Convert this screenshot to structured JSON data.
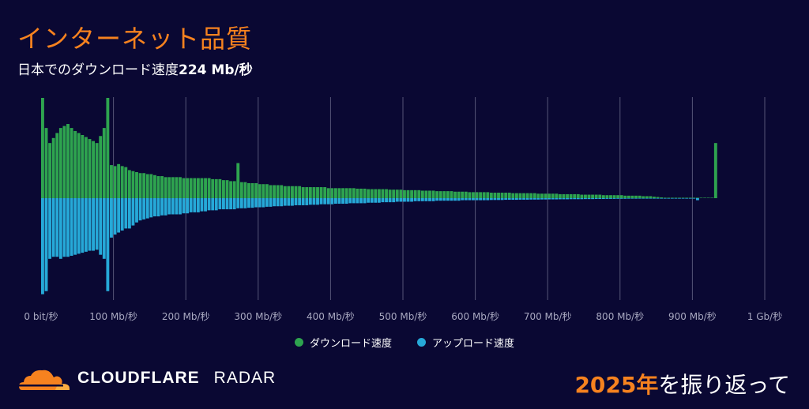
{
  "header": {
    "title": "インターネット品質",
    "subtitle_prefix": "日本でのダウンロード速度",
    "subtitle_value": "224 Mb/秒"
  },
  "footer": {
    "brand": "CLOUDFLARE",
    "product": "RADAR",
    "year": "2025年",
    "tagline": "を振り返って"
  },
  "colors": {
    "background": "#0a0833",
    "download": "#2ea44f",
    "upload": "#26a9d8",
    "accent": "#f6821f",
    "grid": "#555577"
  },
  "chart_data": {
    "type": "bar",
    "title": "インターネット品質",
    "subtitle": "日本でのダウンロード速度224 Mb/秒",
    "x_unit": "Mb/s",
    "xlim": [
      0,
      1000
    ],
    "bin_width_mbps": 5,
    "ticks": [
      {
        "value": 0,
        "label": "0 bit/秒"
      },
      {
        "value": 100,
        "label": "100 Mb/秒"
      },
      {
        "value": 200,
        "label": "200 Mb/秒"
      },
      {
        "value": 300,
        "label": "300 Mb/秒"
      },
      {
        "value": 400,
        "label": "400 Mb/秒"
      },
      {
        "value": 500,
        "label": "500 Mb/秒"
      },
      {
        "value": 600,
        "label": "600 Mb/秒"
      },
      {
        "value": 700,
        "label": "700 Mb/秒"
      },
      {
        "value": 800,
        "label": "800 Mb/秒"
      },
      {
        "value": 900,
        "label": "900 Mb/秒"
      },
      {
        "value": 1000,
        "label": "1 Gb/秒"
      }
    ],
    "legend": [
      "ダウンロード速度",
      "アップロード速度"
    ],
    "series": [
      {
        "name": "ダウンロード速度",
        "direction": "up",
        "values": [
          100,
          70,
          55,
          60,
          65,
          70,
          72,
          74,
          70,
          67,
          65,
          63,
          61,
          59,
          57,
          55,
          62,
          70,
          100,
          33,
          32,
          34,
          32,
          31,
          28,
          27,
          26,
          25,
          25,
          24,
          24,
          23,
          22,
          22,
          21,
          21,
          21,
          21,
          21,
          20,
          20,
          20,
          20,
          20,
          20,
          20,
          20,
          19,
          19,
          19,
          18,
          18,
          17,
          17,
          35,
          16,
          16,
          15,
          15,
          15,
          14,
          14,
          14,
          13,
          13,
          13,
          13,
          12,
          12,
          12,
          12,
          12,
          11,
          11,
          11,
          11,
          11,
          11,
          11,
          10,
          10,
          10,
          10,
          10,
          10,
          10,
          10,
          9.5,
          9.5,
          9.5,
          9,
          9,
          9,
          9,
          9,
          9,
          8.5,
          8.5,
          8.5,
          8.5,
          8,
          8,
          8,
          8,
          8,
          7.5,
          7.5,
          7.5,
          7.5,
          7,
          7,
          7,
          7,
          7,
          6.5,
          6.5,
          6.5,
          6.5,
          6,
          6,
          6,
          6,
          6,
          6,
          5.5,
          5.5,
          5.5,
          5.5,
          5.5,
          5.5,
          5,
          5,
          5,
          5,
          5,
          5,
          5,
          4.5,
          4.5,
          4.5,
          4.5,
          4.5,
          4.5,
          4,
          4,
          4,
          4,
          4,
          4,
          3.5,
          3.5,
          3.5,
          3.5,
          3.5,
          3.5,
          3,
          3,
          3,
          3,
          3,
          3,
          2.5,
          2.5,
          2.5,
          2.5,
          2.5,
          2,
          2,
          2,
          1.5,
          1.2,
          0.8,
          0.5,
          0.4,
          0.4,
          0.3,
          0.3,
          0.3,
          0.3,
          0.3,
          0.3,
          0.3,
          0.3,
          0.3,
          0.3,
          0.3,
          55
        ]
      },
      {
        "name": "アップロード速度",
        "direction": "down",
        "values": [
          95,
          92,
          60,
          58,
          58,
          60,
          58,
          58,
          57,
          56,
          55,
          54,
          53,
          52,
          52,
          51,
          56,
          60,
          92,
          39,
          36,
          34,
          32,
          30,
          30,
          27,
          24,
          22,
          21,
          20,
          19,
          18,
          18,
          17,
          17,
          16,
          16,
          16,
          16,
          15,
          15,
          14,
          14,
          14,
          13,
          13,
          12,
          12,
          12,
          11,
          11,
          11,
          11,
          11,
          10,
          10,
          10,
          9.5,
          9.5,
          9,
          9,
          9,
          8.5,
          8.5,
          8,
          8,
          8,
          7.5,
          7.5,
          7.5,
          7,
          7,
          7,
          7,
          6.5,
          6.5,
          6.5,
          6,
          6,
          6,
          6,
          5.5,
          5.5,
          5.5,
          5.5,
          5,
          5,
          5,
          5,
          5,
          4.5,
          4.5,
          4.5,
          4.5,
          4,
          4,
          4,
          4,
          3.5,
          3.5,
          3.5,
          3.5,
          3.5,
          3,
          3,
          3,
          3,
          3,
          3,
          2.5,
          2.5,
          2.5,
          2.5,
          2.5,
          2.5,
          2.5,
          2,
          2,
          2,
          2,
          2,
          2,
          2,
          2,
          1.8,
          1.8,
          1.8,
          1.8,
          1.6,
          1.6,
          1.6,
          1.6,
          1.5,
          1.5,
          1.5,
          1.4,
          1.4,
          1.4,
          1.3,
          1.3,
          1.2,
          1.2,
          1.2,
          1.1,
          1.1,
          1.1,
          1,
          1,
          1,
          1,
          0.9,
          0.9,
          0.9,
          0.8,
          0.8,
          0.8,
          0.7,
          0.7,
          0.7,
          0.6,
          0.6,
          0.6,
          0.5,
          0.5,
          0.5,
          0.4,
          0.4,
          0.3,
          0.3,
          0.3,
          0.3,
          0.2,
          0.2,
          0.2,
          0.2,
          0.2,
          0.2,
          0.2,
          0.2,
          0.2,
          0.2,
          2
        ]
      }
    ],
    "grid": true,
    "legend_position": "bottom-center"
  }
}
